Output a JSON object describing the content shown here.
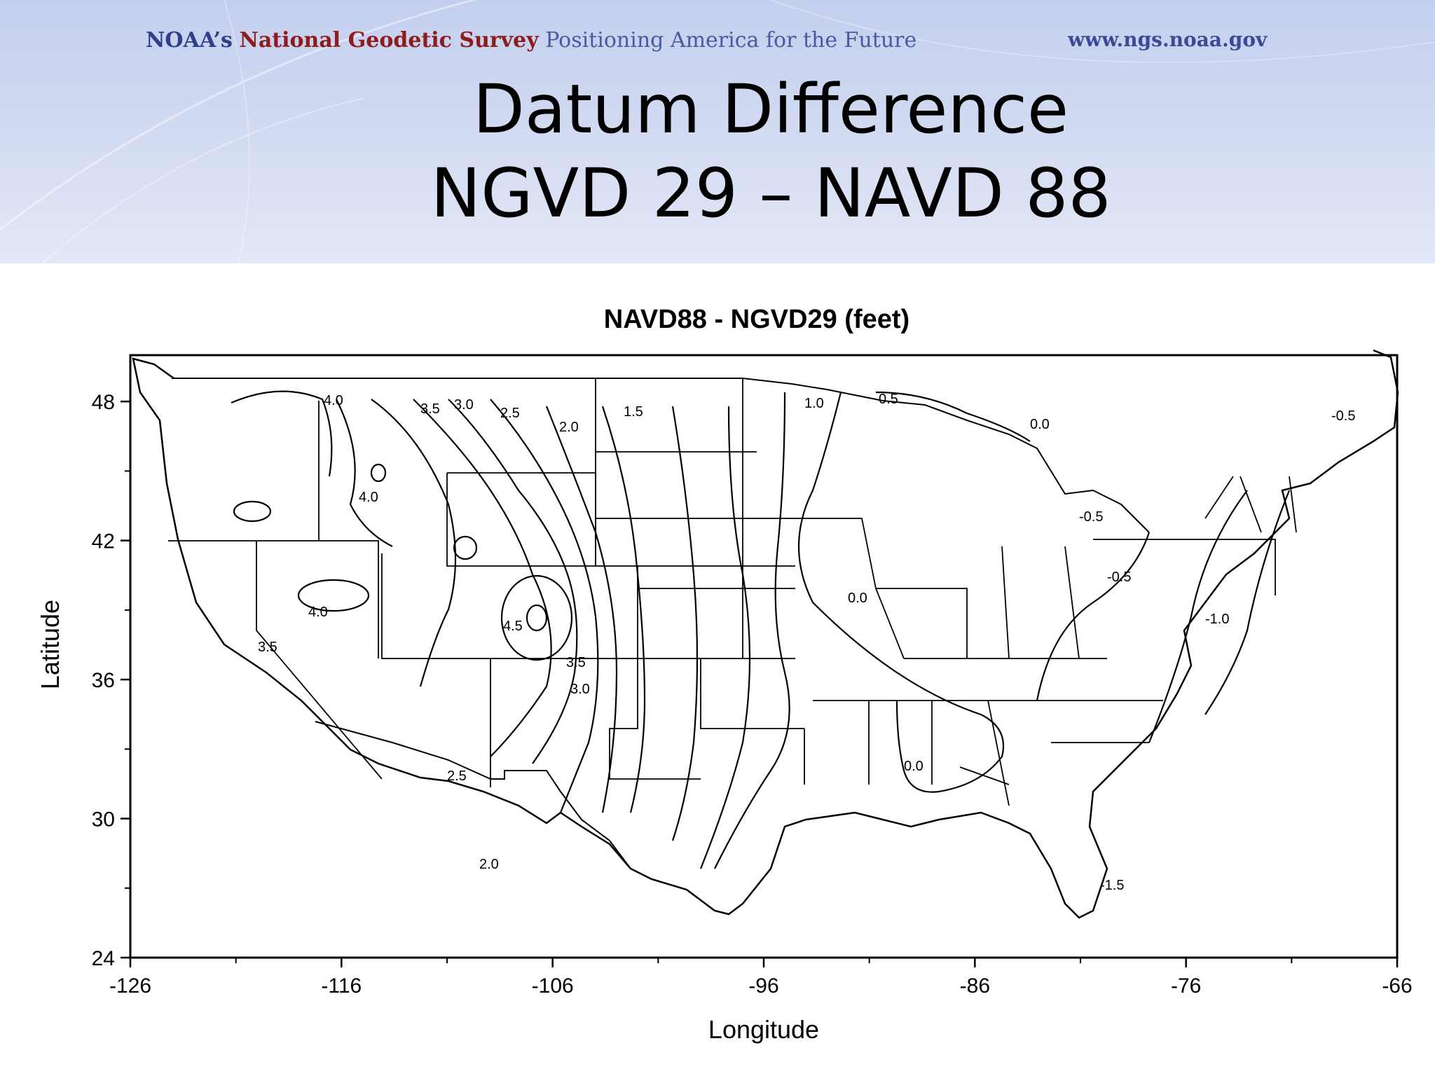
{
  "header": {
    "noaa": "NOAA’s",
    "ngs": "National Geodetic Survey",
    "tagline": "Positioning America for the Future",
    "url": "www.ngs.noaa.gov"
  },
  "slide": {
    "title_line1": "Datum Difference",
    "title_line2": "NGVD 29 – NAVD 88"
  },
  "map": {
    "title": "NAVD88 - NGVD29 (feet)",
    "xlabel": "Longitude",
    "ylabel": "Latitude",
    "x_ticks": [
      "-126",
      "-116",
      "-106",
      "-96",
      "-86",
      "-76",
      "-66"
    ],
    "y_ticks": [
      "48",
      "42",
      "36",
      "30",
      "24"
    ],
    "lon_range": [
      -126,
      -66
    ],
    "lat_range": [
      24,
      50
    ],
    "contour_labels": [
      "4.0",
      "4.0",
      "4.0",
      "3.5",
      "3.5",
      "3.5",
      "3.0",
      "3.0",
      "2.5",
      "2.5",
      "2.0",
      "2.0",
      "1.5",
      "1.0",
      "0.5",
      "0.0",
      "0.0",
      "0.0",
      "-0.5",
      "-0.5",
      "-0.5",
      "-1.0",
      "-1.5",
      "4.5"
    ]
  },
  "colors": {
    "banner": "#c9d3f0",
    "noaa_blue": "#2f3f8a",
    "ngs_red": "#8e1c1c"
  }
}
